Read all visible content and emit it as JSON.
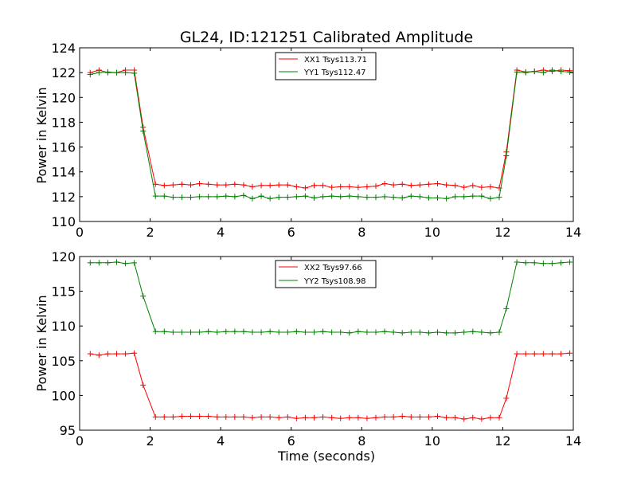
{
  "chart_data": [
    {
      "type": "line",
      "title": "GL24, ID:121251 Calibrated Amplitude",
      "xlabel": "",
      "ylabel": "Power in Kelvin",
      "xlim": [
        0,
        14
      ],
      "ylim": [
        110,
        124
      ],
      "xticks": [
        "0",
        "2",
        "4",
        "6",
        "8",
        "10",
        "12",
        "14"
      ],
      "yticks": [
        "110",
        "112",
        "114",
        "116",
        "118",
        "120",
        "122",
        "124"
      ],
      "grid": false,
      "legend_position": "top-center",
      "x": [
        0.3,
        0.55,
        0.8,
        1.05,
        1.3,
        1.55,
        1.8,
        2.15,
        2.4,
        2.65,
        2.9,
        3.15,
        3.4,
        3.65,
        3.9,
        4.15,
        4.4,
        4.65,
        4.9,
        5.15,
        5.4,
        5.65,
        5.9,
        6.15,
        6.4,
        6.65,
        6.9,
        7.15,
        7.4,
        7.65,
        7.9,
        8.15,
        8.4,
        8.65,
        8.9,
        9.15,
        9.4,
        9.65,
        9.9,
        10.15,
        10.4,
        10.65,
        10.9,
        11.15,
        11.4,
        11.65,
        11.9,
        12.1,
        12.4,
        12.65,
        12.9,
        13.15,
        13.4,
        13.65,
        13.9
      ],
      "series": [
        {
          "name": "XX1 Tsys113.71",
          "color": "#ff0000",
          "values": [
            122.0,
            122.2,
            122.0,
            122.0,
            122.2,
            122.2,
            117.6,
            113.0,
            112.9,
            112.95,
            113.0,
            112.95,
            113.05,
            113.0,
            112.95,
            112.95,
            113.0,
            112.95,
            112.8,
            112.9,
            112.9,
            112.95,
            112.95,
            112.8,
            112.7,
            112.9,
            112.9,
            112.75,
            112.8,
            112.8,
            112.75,
            112.8,
            112.85,
            113.05,
            112.95,
            113.0,
            112.9,
            112.95,
            113.0,
            113.05,
            112.95,
            112.9,
            112.75,
            112.9,
            112.75,
            112.8,
            112.7,
            115.6,
            122.2,
            122.05,
            122.1,
            122.2,
            122.1,
            122.2,
            122.15
          ]
        },
        {
          "name": "YY1 Tsys112.47",
          "color": "#008000",
          "values": [
            121.85,
            122.0,
            122.05,
            122.0,
            122.0,
            121.95,
            117.3,
            112.05,
            112.05,
            111.95,
            111.95,
            111.95,
            112.0,
            112.0,
            112.0,
            112.05,
            112.0,
            112.1,
            111.85,
            112.05,
            111.85,
            111.95,
            111.95,
            112.0,
            112.05,
            111.9,
            112.0,
            112.05,
            112.0,
            112.05,
            112.0,
            111.95,
            111.95,
            112.0,
            111.95,
            111.9,
            112.05,
            112.0,
            111.9,
            111.9,
            111.85,
            112.0,
            112.0,
            112.05,
            112.05,
            111.85,
            111.95,
            115.3,
            122.05,
            122.0,
            122.1,
            122.0,
            122.2,
            122.1,
            122.05
          ]
        }
      ]
    },
    {
      "type": "line",
      "title": "",
      "xlabel": "Time (seconds)",
      "ylabel": "Power in Kelvin",
      "xlim": [
        0,
        14
      ],
      "ylim": [
        95,
        120
      ],
      "xticks": [
        "0",
        "2",
        "4",
        "6",
        "8",
        "10",
        "12",
        "14"
      ],
      "yticks": [
        "95",
        "100",
        "105",
        "110",
        "115",
        "120"
      ],
      "grid": false,
      "legend_position": "top-center",
      "x": [
        0.3,
        0.55,
        0.8,
        1.05,
        1.3,
        1.55,
        1.8,
        2.15,
        2.4,
        2.65,
        2.9,
        3.15,
        3.4,
        3.65,
        3.9,
        4.15,
        4.4,
        4.65,
        4.9,
        5.15,
        5.4,
        5.65,
        5.9,
        6.15,
        6.4,
        6.65,
        6.9,
        7.15,
        7.4,
        7.65,
        7.9,
        8.15,
        8.4,
        8.65,
        8.9,
        9.15,
        9.4,
        9.65,
        9.9,
        10.15,
        10.4,
        10.65,
        10.9,
        11.15,
        11.4,
        11.65,
        11.9,
        12.1,
        12.4,
        12.65,
        12.9,
        13.15,
        13.4,
        13.65,
        13.9
      ],
      "series": [
        {
          "name": "XX2 Tsys97.66",
          "color": "#ff0000",
          "values": [
            106.0,
            105.8,
            106.0,
            106.0,
            106.0,
            106.1,
            101.5,
            96.9,
            96.9,
            96.9,
            97.0,
            97.0,
            97.0,
            97.0,
            96.9,
            96.9,
            96.9,
            96.9,
            96.8,
            96.9,
            96.9,
            96.8,
            96.9,
            96.7,
            96.8,
            96.8,
            96.9,
            96.8,
            96.7,
            96.8,
            96.8,
            96.7,
            96.8,
            96.9,
            96.9,
            97.0,
            96.9,
            96.9,
            96.9,
            97.0,
            96.8,
            96.8,
            96.6,
            96.8,
            96.6,
            96.8,
            96.8,
            99.6,
            106.0,
            106.0,
            106.0,
            106.0,
            106.0,
            106.0,
            106.1
          ]
        },
        {
          "name": "YY2 Tsys108.98",
          "color": "#008000",
          "values": [
            119.1,
            119.1,
            119.1,
            119.2,
            119.0,
            119.1,
            114.3,
            109.2,
            109.2,
            109.1,
            109.1,
            109.1,
            109.1,
            109.2,
            109.1,
            109.2,
            109.2,
            109.2,
            109.1,
            109.1,
            109.2,
            109.1,
            109.1,
            109.2,
            109.1,
            109.1,
            109.2,
            109.1,
            109.1,
            109.0,
            109.2,
            109.1,
            109.1,
            109.2,
            109.1,
            109.0,
            109.1,
            109.1,
            109.0,
            109.1,
            109.0,
            109.0,
            109.1,
            109.2,
            109.1,
            109.0,
            109.1,
            112.5,
            119.2,
            119.1,
            119.1,
            119.0,
            119.0,
            119.1,
            119.2
          ]
        }
      ]
    }
  ]
}
